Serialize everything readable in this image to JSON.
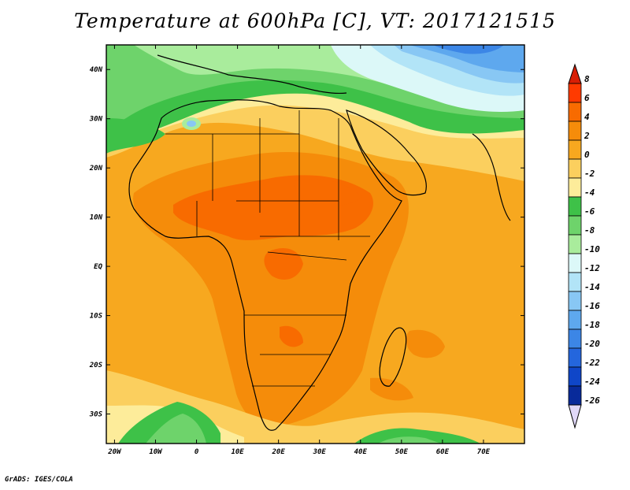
{
  "title": "Temperature at 600hPa [C], VT: 2017121515",
  "footer": "GrADS: IGES/COLA",
  "map": {
    "lon_range": [
      -22,
      80
    ],
    "lat_range": [
      -36,
      45
    ],
    "lat_ticks": [
      {
        "value": 40,
        "label": "40N"
      },
      {
        "value": 30,
        "label": "30N"
      },
      {
        "value": 20,
        "label": "20N"
      },
      {
        "value": 10,
        "label": "10N"
      },
      {
        "value": 0,
        "label": "EQ"
      },
      {
        "value": -10,
        "label": "10S"
      },
      {
        "value": -20,
        "label": "20S"
      },
      {
        "value": -30,
        "label": "30S"
      }
    ],
    "lon_ticks": [
      {
        "value": -20,
        "label": "20W"
      },
      {
        "value": -10,
        "label": "10W"
      },
      {
        "value": 0,
        "label": "0"
      },
      {
        "value": 10,
        "label": "10E"
      },
      {
        "value": 20,
        "label": "20E"
      },
      {
        "value": 30,
        "label": "30E"
      },
      {
        "value": 40,
        "label": "40E"
      },
      {
        "value": 50,
        "label": "50E"
      },
      {
        "value": 60,
        "label": "60E"
      },
      {
        "value": 70,
        "label": "70E"
      }
    ]
  },
  "colorbar": {
    "levels": [
      {
        "label": "8",
        "color": "#f0f0f0"
      },
      {
        "label": "6",
        "color": "#ff3a00"
      },
      {
        "label": "4",
        "color": "#f86b00"
      },
      {
        "label": "2",
        "color": "#f58c0a"
      },
      {
        "label": "0",
        "color": "#f7a81f"
      },
      {
        "label": "-2",
        "color": "#fbcf5e"
      },
      {
        "label": "-4",
        "color": "#fdec9a"
      },
      {
        "label": "-6",
        "color": "#3ec148"
      },
      {
        "label": "-8",
        "color": "#6ed36b"
      },
      {
        "label": "-10",
        "color": "#a9ec9c"
      },
      {
        "label": "-12",
        "color": "#dcf8f8"
      },
      {
        "label": "-14",
        "color": "#b2e4f7"
      },
      {
        "label": "-16",
        "color": "#88c7f4"
      },
      {
        "label": "-18",
        "color": "#5ea8ee"
      },
      {
        "label": "-20",
        "color": "#3c86e6"
      },
      {
        "label": "-22",
        "color": "#2466dd"
      },
      {
        "label": "-24",
        "color": "#0f46c8"
      },
      {
        "label": "-26",
        "color": "#082a9a"
      }
    ],
    "top_arrow_color": "#d81e05",
    "bottom_arrow_color": "#e0d8f8"
  }
}
